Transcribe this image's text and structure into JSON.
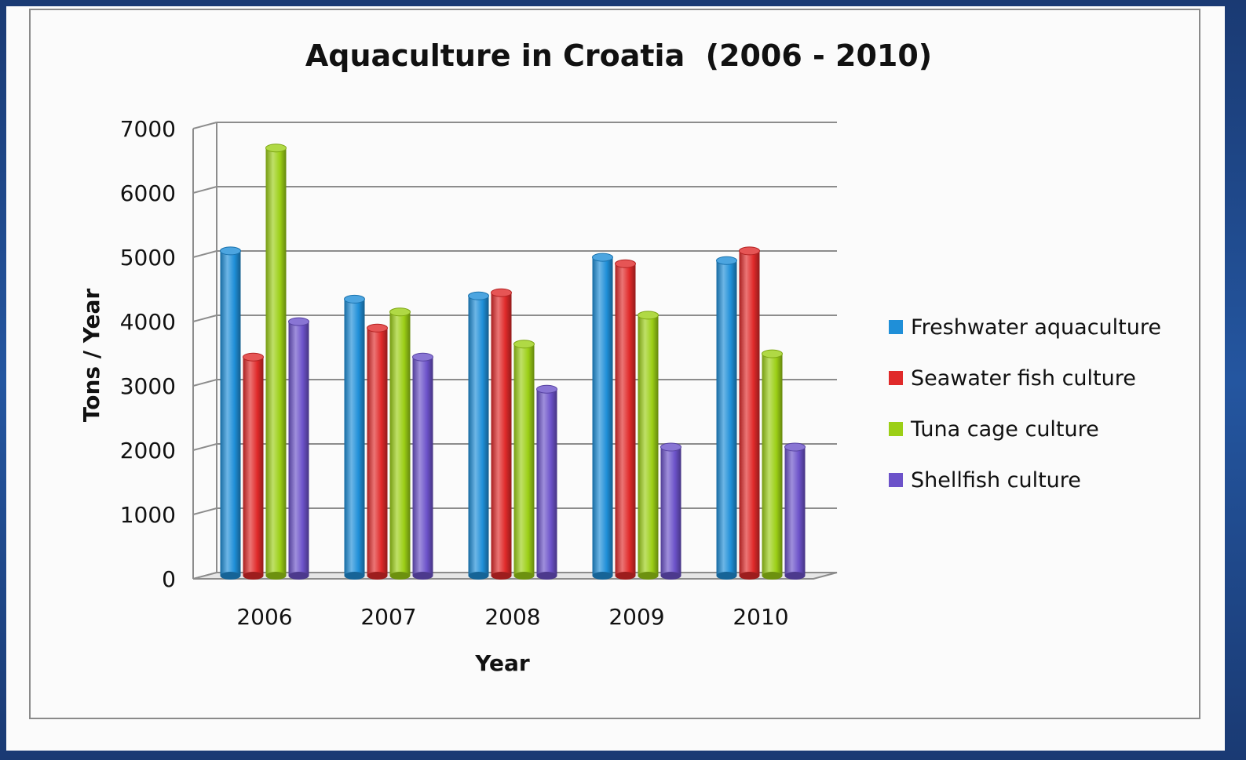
{
  "chart_data": {
    "type": "bar",
    "title": "Aquaculture in Croatia  (2006 - 2010)",
    "xlabel": "Year",
    "ylabel": "Tons / Year",
    "ylim": [
      0,
      7000
    ],
    "yticks": [
      "0",
      "1000",
      "2000",
      "3000",
      "4000",
      "5000",
      "6000",
      "7000"
    ],
    "categories": [
      "2006",
      "2007",
      "2008",
      "2009",
      "2010"
    ],
    "grid": true,
    "legend_position": "right",
    "series": [
      {
        "name": "Freshwater aquaculture",
        "color": "#1f8fd8",
        "values": [
          5050,
          4300,
          4350,
          4950,
          4900
        ]
      },
      {
        "name": "Seawater  fish culture",
        "color": "#e02a2a",
        "values": [
          3400,
          3850,
          4400,
          4850,
          5050
        ]
      },
      {
        "name": "Tuna cage culture",
        "color": "#9ccf16",
        "values": [
          6650,
          4100,
          3600,
          4050,
          3450
        ]
      },
      {
        "name": "Shellfish culture",
        "color": "#6c52c9",
        "values": [
          3950,
          3400,
          2900,
          2000,
          2000
        ]
      }
    ]
  }
}
